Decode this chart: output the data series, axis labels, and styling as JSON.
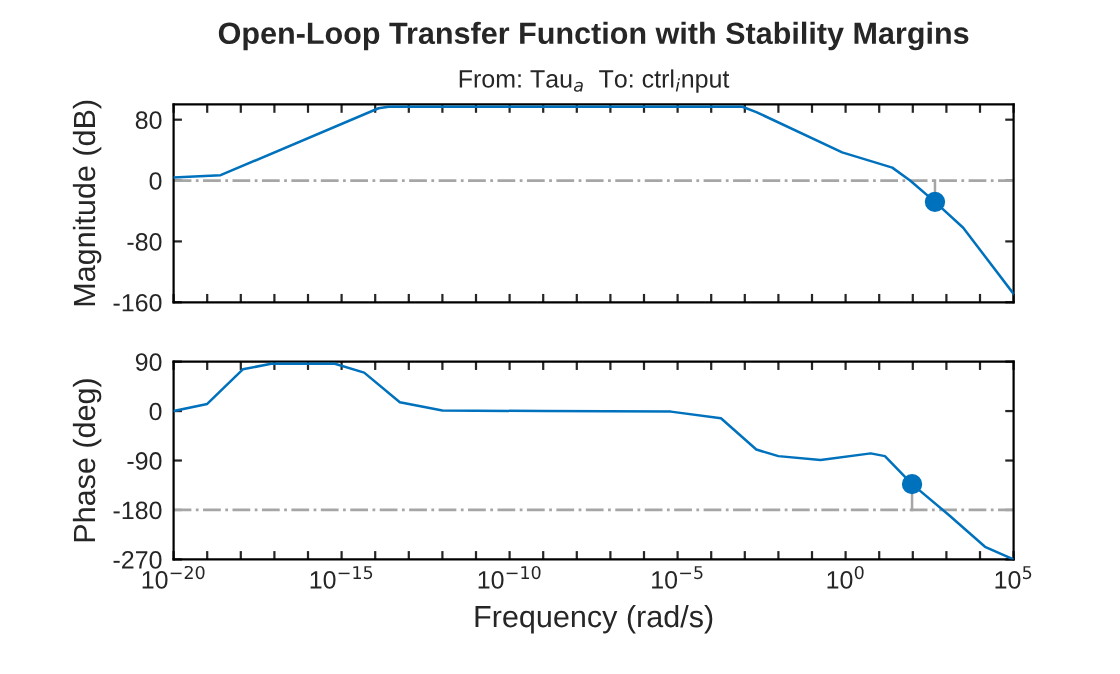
{
  "chart_data": [
    {
      "type": "line",
      "title": "Open-Loop Transfer Function with Stability Margins",
      "subtitle": "From: Tau$_{a}$  To: ctrl$_{i}$nput",
      "ylabel": "Magnitude (dB)",
      "log": "x",
      "grid": false,
      "legend": false,
      "tick_labels": "y",
      "marker": "none",
      "line_style": "solid",
      "xlim": [
        1e-20,
        100000
      ],
      "ylim": [
        -160,
        100
      ],
      "yticks": [
        -160,
        -80,
        0,
        80
      ],
      "xticks": [
        {
          "value": 1e-20,
          "label": null
        },
        {
          "value": 1e-19,
          "label": null
        },
        {
          "value": 1e-18,
          "label": null
        },
        {
          "value": 1e-17,
          "label": null
        },
        {
          "value": 1e-16,
          "label": null
        },
        {
          "value": 1e-15,
          "label": null
        },
        {
          "value": 1e-14,
          "label": null
        },
        {
          "value": 1e-13,
          "label": null
        },
        {
          "value": 1e-12,
          "label": null
        },
        {
          "value": 1e-11,
          "label": null
        },
        {
          "value": 1e-10,
          "label": null
        },
        {
          "value": 1e-09,
          "label": null
        },
        {
          "value": 1e-08,
          "label": null
        },
        {
          "value": 1e-07,
          "label": null
        },
        {
          "value": 1e-06,
          "label": null
        },
        {
          "value": 1e-05,
          "label": null
        },
        {
          "value": 0.0001,
          "label": null
        },
        {
          "value": 0.001,
          "label": null
        },
        {
          "value": 0.01,
          "label": null
        },
        {
          "value": 0.1,
          "label": null
        },
        {
          "value": 1,
          "label": null
        },
        {
          "value": 10,
          "label": null
        },
        {
          "value": 100,
          "label": null
        },
        {
          "value": 1000,
          "label": null
        },
        {
          "value": 10000,
          "label": null
        },
        {
          "value": 100000,
          "label": null
        }
      ],
      "ref_lines": [
        {
          "axis": "y",
          "value": 0,
          "color": "#a6a6a6",
          "line_style": "dashdot"
        }
      ],
      "series": [
        {
          "color": "#0072bd",
          "x": [
            1e-20,
            2.5e-19,
            1.26e-14,
            2.5e-14,
            0.00085,
            0.0022,
            0.79,
            24.5,
            83,
            457,
            3160,
            100000
          ],
          "values": [
            4,
            7,
            95,
            97,
            97,
            90,
            37,
            17,
            0,
            -28,
            -62,
            -149
          ]
        },
        {
          "type": "line",
          "color": "#a6a6a6",
          "x": [
            457,
            457
          ],
          "values": [
            0,
            -28
          ]
        },
        {
          "type": "scatter",
          "color": "#0072bd",
          "marker": "circle",
          "x": [
            457
          ],
          "values": [
            -28
          ]
        }
      ]
    },
    {
      "type": "line",
      "xlabel": "Frequency (rad/s)",
      "ylabel": "Phase (deg)",
      "log": "x",
      "grid": false,
      "legend": false,
      "marker": "none",
      "line_style": "solid",
      "xlim": [
        1e-20,
        100000
      ],
      "ylim": [
        -270,
        90
      ],
      "yticks": [
        -270,
        -180,
        -90,
        0,
        90
      ],
      "xticks": [
        {
          "value": 1e-20,
          "label": "10$^{−20}$"
        },
        {
          "value": 1e-19,
          "label": null
        },
        {
          "value": 1e-18,
          "label": null
        },
        {
          "value": 1e-17,
          "label": null
        },
        {
          "value": 1e-16,
          "label": null
        },
        {
          "value": 1e-15,
          "label": "10$^{−15}$"
        },
        {
          "value": 1e-14,
          "label": null
        },
        {
          "value": 1e-13,
          "label": null
        },
        {
          "value": 1e-12,
          "label": null
        },
        {
          "value": 1e-11,
          "label": null
        },
        {
          "value": 1e-10,
          "label": "10$^{−10}$"
        },
        {
          "value": 1e-09,
          "label": null
        },
        {
          "value": 1e-08,
          "label": null
        },
        {
          "value": 1e-07,
          "label": null
        },
        {
          "value": 1e-06,
          "label": null
        },
        {
          "value": 1e-05,
          "label": "10$^{−5}$"
        },
        {
          "value": 0.0001,
          "label": null
        },
        {
          "value": 0.001,
          "label": null
        },
        {
          "value": 0.01,
          "label": null
        },
        {
          "value": 0.1,
          "label": null
        },
        {
          "value": 1,
          "label": "10$^{0}$"
        },
        {
          "value": 10,
          "label": null
        },
        {
          "value": 100,
          "label": null
        },
        {
          "value": 1000,
          "label": null
        },
        {
          "value": 10000,
          "label": null
        },
        {
          "value": 100000,
          "label": "10$^{5}$"
        }
      ],
      "ref_lines": [
        {
          "axis": "y",
          "value": -180,
          "color": "#a6a6a6",
          "line_style": "dashdot"
        }
      ],
      "series": [
        {
          "color": "#0072bd",
          "x": [
            1e-20,
            1e-19,
            1.15e-18,
            8e-18,
            6.3e-16,
            4.7e-15,
            5.4e-14,
            1e-12,
            1e-09,
            6.3e-06,
            0.000195,
            0.0022,
            0.01,
            0.18,
            5.6,
            14.8,
            95,
            1230,
            14100,
            100000
          ],
          "values": [
            0,
            13,
            76,
            86,
            86,
            70,
            16,
            1,
            0,
            -1,
            -13,
            -70,
            -82,
            -89,
            -77,
            -82,
            -133,
            -190,
            -247,
            -270
          ]
        },
        {
          "type": "line",
          "color": "#a6a6a6",
          "x": [
            95,
            95
          ],
          "values": [
            -180,
            -133
          ]
        },
        {
          "type": "scatter",
          "color": "#0072bd",
          "marker": "circle",
          "x": [
            95
          ],
          "values": [
            -133
          ]
        }
      ]
    }
  ]
}
